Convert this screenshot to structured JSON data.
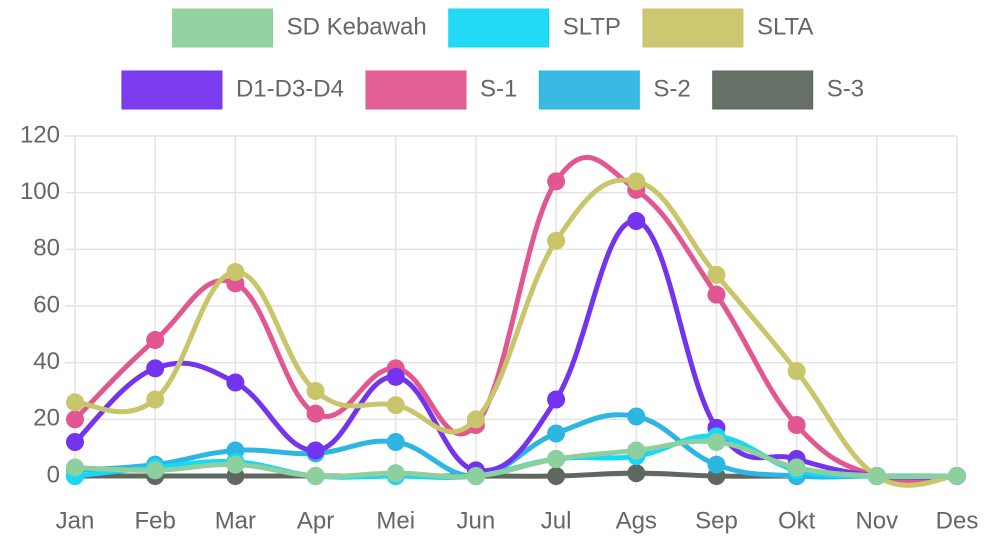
{
  "chart_data": {
    "type": "line",
    "categories": [
      "Jan",
      "Feb",
      "Mar",
      "Apr",
      "Mei",
      "Jun",
      "Jul",
      "Ags",
      "Sep",
      "Okt",
      "Nov",
      "Des"
    ],
    "series": [
      {
        "name": "SD Kebawah",
        "color": "#8ed09d",
        "values": [
          3,
          2,
          4,
          0,
          1,
          0,
          6,
          9,
          12,
          3,
          0,
          0
        ]
      },
      {
        "name": "SLTP",
        "color": "#17d8f6",
        "values": [
          0,
          3,
          5,
          0,
          0,
          0,
          6,
          7,
          14,
          2,
          0,
          0
        ]
      },
      {
        "name": "SLTA",
        "color": "#c9c56a",
        "values": [
          26,
          27,
          72,
          30,
          25,
          20,
          83,
          104,
          71,
          37,
          0,
          0
        ]
      },
      {
        "name": "D1-D3-D4",
        "color": "#7433ee",
        "values": [
          12,
          38,
          33,
          9,
          35,
          2,
          27,
          90,
          17,
          6,
          0,
          0
        ]
      },
      {
        "name": "S-1",
        "color": "#e25791",
        "values": [
          20,
          48,
          68,
          22,
          38,
          18,
          104,
          101,
          64,
          18,
          0,
          0
        ]
      },
      {
        "name": "S-2",
        "color": "#2db6e1",
        "values": [
          2,
          4,
          9,
          8,
          12,
          0,
          15,
          21,
          4,
          0,
          0,
          0
        ]
      },
      {
        "name": "S-3",
        "color": "#5e685f",
        "values": [
          0,
          0,
          0,
          0,
          0,
          0,
          0,
          1,
          0,
          0,
          0,
          0
        ]
      }
    ],
    "ylim": [
      0,
      120
    ],
    "yticks": [
      0,
      20,
      40,
      60,
      80,
      100,
      120
    ],
    "grid": true,
    "legend": "top"
  }
}
